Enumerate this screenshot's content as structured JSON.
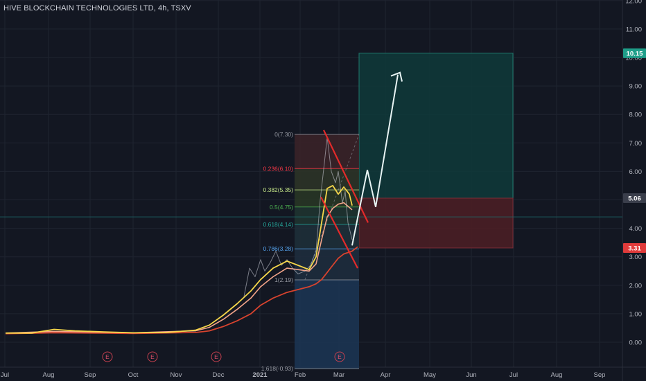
{
  "title": "HIVE BLOCKCHAIN TECHNOLOGIES LTD, 4h, TSXV",
  "colors": {
    "background": "#131722",
    "ema_fast": "#f5d64a",
    "ema_mid": "#f4a58a",
    "ema_slow": "#d8432e",
    "price": "#d1d4dc",
    "target_zone": "#0f3a3a",
    "stop_zone": "#4a1e25",
    "channel": "#e32a2a",
    "arrow": "#e8f4f4",
    "price_badge_green": "#1e9e89",
    "price_badge_grey": "#3a3e4b",
    "price_badge_red": "#e03b3b"
  },
  "chart_data": {
    "type": "line",
    "x_ticks": [
      "Jul",
      "Aug",
      "Sep",
      "Oct",
      "Nov",
      "Dec",
      "2021",
      "Feb",
      "Mar",
      "Apr",
      "May",
      "Jun",
      "Jul",
      "Aug",
      "Sep"
    ],
    "y_ticks": [
      "12.00",
      "11.00",
      "10.00",
      "9.00",
      "8.00",
      "7.00",
      "6.00",
      "5.00",
      "4.00",
      "3.00",
      "2.00",
      "1.00",
      "0.00"
    ],
    "ylim": [
      -0.7,
      12.1
    ],
    "price_labels": [
      {
        "value": "10.15",
        "color": "green"
      },
      {
        "value": "5.06",
        "color": "grey"
      },
      {
        "value": "3.31",
        "color": "red"
      }
    ],
    "fibonacci": [
      {
        "label": "0(7.30)",
        "value": 7.3,
        "color": "#9598a1"
      },
      {
        "label": "0.236(6.10)",
        "value": 6.1,
        "color": "#f23645"
      },
      {
        "label": "0.382(5.35)",
        "value": 5.35,
        "color": "#c7e98a"
      },
      {
        "label": "0.5(4.75)",
        "value": 4.75,
        "color": "#4caf50"
      },
      {
        "label": "0.618(4.14)",
        "value": 4.14,
        "color": "#26a69a"
      },
      {
        "label": "0.786(3.28)",
        "value": 3.28,
        "color": "#56a5f0"
      },
      {
        "label": "1(2.19)",
        "value": 2.19,
        "color": "#9598a1"
      },
      {
        "label": "1.618(-0.93)",
        "value": -0.93,
        "color": "#9598a1"
      }
    ],
    "position": {
      "entry": 5.06,
      "target": 10.15,
      "stop": 3.31
    },
    "earnings_markers": [
      "E",
      "E",
      "E",
      "E"
    ],
    "series": [
      {
        "name": "EMA fast",
        "x": [
          "2020-07-01",
          "2020-07-20",
          "2020-08-05",
          "2020-08-20",
          "2020-09-10",
          "2020-10-01",
          "2020-10-25",
          "2020-11-15",
          "2020-11-25",
          "2020-12-05",
          "2020-12-15",
          "2020-12-25",
          "2021-01-01",
          "2021-01-10",
          "2021-01-20",
          "2021-01-28",
          "2021-02-05",
          "2021-02-10",
          "2021-02-14",
          "2021-02-18",
          "2021-02-22",
          "2021-02-26",
          "2021-03-02",
          "2021-03-06",
          "2021-03-08"
        ],
        "values": [
          0.32,
          0.32,
          0.45,
          0.4,
          0.36,
          0.33,
          0.34,
          0.42,
          0.6,
          0.95,
          1.35,
          1.8,
          2.2,
          2.6,
          2.85,
          2.7,
          2.55,
          3.0,
          4.2,
          5.4,
          5.5,
          5.2,
          5.45,
          5.2,
          4.8
        ]
      },
      {
        "name": "EMA mid",
        "x": [
          "2020-07-01",
          "2020-08-05",
          "2020-09-10",
          "2020-10-01",
          "2020-11-15",
          "2020-11-25",
          "2020-12-05",
          "2020-12-15",
          "2020-12-25",
          "2021-01-01",
          "2021-01-10",
          "2021-01-20",
          "2021-01-28",
          "2021-02-05",
          "2021-02-10",
          "2021-02-14",
          "2021-02-18",
          "2021-02-22",
          "2021-02-26",
          "2021-03-02",
          "2021-03-08"
        ],
        "values": [
          0.32,
          0.38,
          0.35,
          0.33,
          0.4,
          0.52,
          0.8,
          1.15,
          1.55,
          1.95,
          2.3,
          2.6,
          2.55,
          2.5,
          2.75,
          3.6,
          4.4,
          4.7,
          4.85,
          4.9,
          4.65
        ]
      },
      {
        "name": "EMA slow",
        "x": [
          "2020-07-01",
          "2020-08-05",
          "2020-09-10",
          "2020-10-01",
          "2020-11-15",
          "2020-11-25",
          "2020-12-05",
          "2020-12-15",
          "2020-12-25",
          "2021-01-01",
          "2021-01-10",
          "2021-01-20",
          "2021-01-28",
          "2021-02-05",
          "2021-02-10",
          "2021-02-14",
          "2021-02-18",
          "2021-02-22",
          "2021-02-26",
          "2021-03-02",
          "2021-03-08",
          "2021-03-12"
        ],
        "values": [
          0.3,
          0.33,
          0.32,
          0.31,
          0.34,
          0.4,
          0.55,
          0.75,
          1.0,
          1.3,
          1.55,
          1.75,
          1.85,
          1.95,
          2.05,
          2.2,
          2.45,
          2.7,
          2.95,
          3.1,
          3.2,
          3.35
        ]
      },
      {
        "name": "Price",
        "x": [
          "2020-12-20",
          "2020-12-24",
          "2020-12-28",
          "2021-01-01",
          "2021-01-04",
          "2021-01-08",
          "2021-01-12",
          "2021-01-16",
          "2021-01-20",
          "2021-01-24",
          "2021-01-28",
          "2021-02-02",
          "2021-02-06",
          "2021-02-10",
          "2021-02-13",
          "2021-02-16",
          "2021-02-18",
          "2021-02-21",
          "2021-02-24",
          "2021-02-26",
          "2021-03-01",
          "2021-03-03",
          "2021-03-05",
          "2021-03-08"
        ],
        "values": [
          1.6,
          2.6,
          2.3,
          2.9,
          2.5,
          2.8,
          3.2,
          2.7,
          2.9,
          2.6,
          2.4,
          2.5,
          2.7,
          3.2,
          5.0,
          6.3,
          7.2,
          6.0,
          5.6,
          6.0,
          4.9,
          5.3,
          4.2,
          3.6
        ]
      }
    ],
    "projection": {
      "x": [
        "2021-03-08",
        "2021-03-19",
        "2021-03-25",
        "2021-04-10"
      ],
      "values": [
        3.4,
        6.05,
        4.75,
        9.4
      ]
    }
  }
}
